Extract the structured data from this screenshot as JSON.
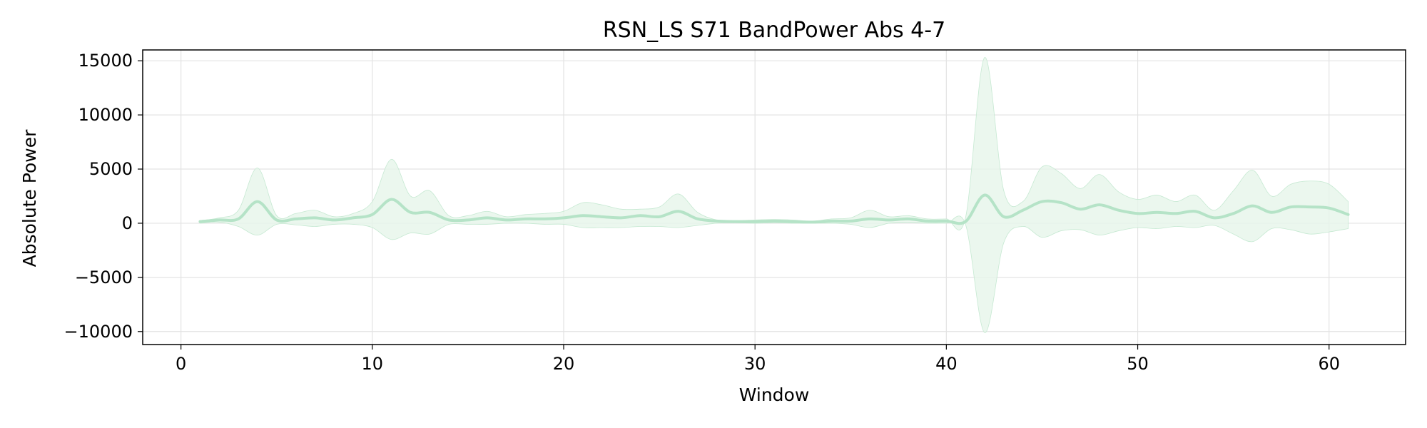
{
  "chart_data": {
    "type": "line",
    "title": "RSN_LS S71 BandPower Abs 4-7",
    "xlabel": "Window",
    "ylabel": "Absolute Power",
    "xlim": [
      -2,
      64
    ],
    "ylim": [
      -11200,
      16000
    ],
    "xticks": [
      0,
      10,
      20,
      30,
      40,
      50,
      60
    ],
    "yticks": [
      -10000,
      -5000,
      0,
      5000,
      10000,
      15000
    ],
    "xtick_labels": [
      "0",
      "10",
      "20",
      "30",
      "40",
      "50",
      "60"
    ],
    "ytick_labels": [
      "−10000",
      "−5000",
      "0",
      "5000",
      "10000",
      "15000"
    ],
    "grid": true,
    "line_color": "#b5e3c7",
    "band_color": "#e6f5ea",
    "series": [
      {
        "x": [
          1,
          2,
          3,
          4,
          5,
          6,
          7,
          8,
          9,
          10,
          11,
          12,
          13,
          14,
          15,
          16,
          17,
          18,
          19,
          20,
          21,
          22,
          23,
          24,
          25,
          26,
          27,
          28,
          29,
          30,
          31,
          32,
          33,
          34,
          35,
          36,
          37,
          38,
          39,
          40,
          41,
          42,
          43,
          44,
          45,
          46,
          47,
          48,
          49,
          50,
          51,
          52,
          53,
          54,
          55,
          56,
          57,
          58,
          59,
          60,
          61
        ],
        "mean": [
          150,
          300,
          400,
          2000,
          300,
          400,
          500,
          300,
          500,
          800,
          2200,
          1000,
          1000,
          300,
          300,
          500,
          300,
          400,
          400,
          500,
          700,
          600,
          500,
          700,
          600,
          1100,
          400,
          200,
          150,
          150,
          200,
          150,
          100,
          200,
          200,
          400,
          300,
          400,
          200,
          200,
          150,
          2600,
          600,
          1200,
          2000,
          1900,
          1300,
          1700,
          1200,
          900,
          1000,
          900,
          1100,
          500,
          900,
          1600,
          1000,
          1500,
          1500,
          1400,
          800
        ],
        "upper": [
          250,
          500,
          1200,
          5100,
          700,
          900,
          1200,
          600,
          900,
          2000,
          5900,
          2500,
          3000,
          700,
          700,
          1100,
          600,
          800,
          900,
          1100,
          1900,
          1700,
          1300,
          1300,
          1500,
          2700,
          1000,
          300,
          250,
          300,
          350,
          300,
          200,
          400,
          500,
          1200,
          600,
          700,
          400,
          400,
          500,
          15300,
          3000,
          2000,
          5200,
          4600,
          3200,
          4500,
          2900,
          2200,
          2600,
          2000,
          2600,
          1200,
          3000,
          4900,
          2500,
          3600,
          3900,
          3600,
          2000
        ],
        "lower": [
          0,
          100,
          -300,
          -1100,
          -100,
          -150,
          -300,
          -100,
          -100,
          -400,
          -1500,
          -900,
          -1000,
          -100,
          -100,
          -100,
          0,
          0,
          -100,
          -100,
          -400,
          -400,
          -400,
          -300,
          -300,
          -400,
          -200,
          0,
          50,
          0,
          50,
          0,
          0,
          0,
          -100,
          -400,
          0,
          100,
          0,
          0,
          -100,
          -10100,
          -1800,
          -300,
          -1300,
          -700,
          -600,
          -1100,
          -700,
          -400,
          -500,
          -300,
          -400,
          -200,
          -1000,
          -1700,
          -500,
          -600,
          -1000,
          -800,
          -500
        ]
      }
    ]
  }
}
